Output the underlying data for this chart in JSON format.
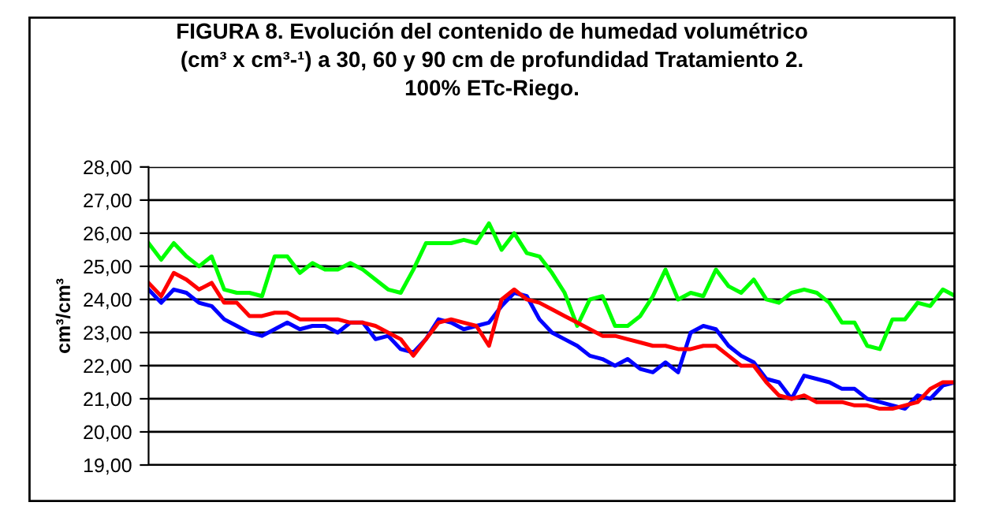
{
  "chart_data": {
    "type": "line",
    "title": "FIGURA 8. Evolución del contenido de humedad volumétrico\n(cm³ x cm³-¹) a 30, 60 y 90 cm de profundidad Tratamiento 2.\n100% ETc-Riego.",
    "ylabel": "cm³/cm³",
    "categories": [
      null,
      null,
      null,
      null,
      null,
      null,
      null,
      null,
      null,
      null,
      null,
      null,
      null,
      null,
      null,
      null,
      null,
      null,
      null,
      null,
      null,
      null,
      null,
      null,
      null,
      null,
      null,
      null,
      null,
      null,
      null,
      null,
      null,
      null,
      null,
      null,
      null,
      null,
      null,
      null,
      null,
      null,
      null,
      null,
      null,
      null,
      null,
      null,
      null,
      null,
      null,
      null,
      null,
      null,
      null,
      null,
      null,
      null,
      null,
      null,
      null,
      null,
      null,
      null,
      null
    ],
    "series": [
      {
        "color": "#00ff00",
        "values": [
          25.7,
          25.2,
          25.7,
          25.3,
          25.0,
          25.3,
          24.3,
          24.2,
          24.2,
          24.1,
          25.3,
          25.3,
          24.8,
          25.1,
          24.9,
          24.9,
          25.1,
          24.9,
          24.6,
          24.3,
          24.2,
          24.9,
          25.7,
          25.7,
          25.7,
          25.8,
          25.7,
          26.3,
          25.5,
          26.0,
          25.4,
          25.3,
          24.8,
          24.2,
          23.2,
          24.0,
          24.1,
          23.2,
          23.2,
          23.5,
          24.1,
          24.9,
          24.0,
          24.2,
          24.1,
          24.9,
          24.4,
          24.2,
          24.6,
          24.0,
          23.9,
          24.2,
          24.3,
          24.2,
          23.9,
          23.3,
          23.3,
          22.6,
          22.5,
          23.4,
          23.4,
          23.9,
          23.8,
          24.3,
          24.1
        ]
      },
      {
        "color": "#0000ff",
        "values": [
          24.3,
          23.9,
          24.3,
          24.2,
          23.9,
          23.8,
          23.4,
          23.2,
          23.0,
          22.9,
          23.1,
          23.3,
          23.1,
          23.2,
          23.2,
          23.0,
          23.3,
          23.3,
          22.8,
          22.9,
          22.5,
          22.4,
          22.8,
          23.4,
          23.3,
          23.1,
          23.2,
          23.3,
          23.8,
          24.2,
          24.1,
          23.4,
          23.0,
          22.8,
          22.6,
          22.3,
          22.2,
          22.0,
          22.2,
          21.9,
          21.8,
          22.1,
          21.8,
          23.0,
          23.2,
          23.1,
          22.6,
          22.3,
          22.1,
          21.6,
          21.5,
          21.0,
          21.7,
          21.6,
          21.5,
          21.3,
          21.3,
          21.0,
          20.9,
          20.8,
          20.7,
          21.1,
          21.0,
          21.4,
          21.5
        ]
      },
      {
        "color": "#ff0000",
        "values": [
          24.5,
          24.1,
          24.8,
          24.6,
          24.3,
          24.5,
          23.9,
          23.9,
          23.5,
          23.5,
          23.6,
          23.6,
          23.4,
          23.4,
          23.4,
          23.4,
          23.3,
          23.3,
          23.2,
          23.0,
          22.8,
          22.3,
          22.8,
          23.3,
          23.4,
          23.3,
          23.2,
          22.6,
          24.0,
          24.3,
          24.0,
          23.9,
          23.7,
          23.5,
          23.3,
          23.1,
          22.9,
          22.9,
          22.8,
          22.7,
          22.6,
          22.6,
          22.5,
          22.5,
          22.6,
          22.6,
          22.3,
          22.0,
          22.0,
          21.5,
          21.1,
          21.0,
          21.1,
          20.9,
          20.9,
          20.9,
          20.8,
          20.8,
          20.7,
          20.7,
          20.8,
          20.9,
          21.3,
          21.5,
          21.5
        ]
      }
    ],
    "ylim": [
      19,
      28
    ],
    "yticks": [
      {
        "value": 19,
        "label": "19,00"
      },
      {
        "value": 20,
        "label": "20,00"
      },
      {
        "value": 21,
        "label": "21,00"
      },
      {
        "value": 22,
        "label": "22,00"
      },
      {
        "value": 23,
        "label": "23,00"
      },
      {
        "value": 24,
        "label": "24,00"
      },
      {
        "value": 25,
        "label": "25,00"
      },
      {
        "value": 26,
        "label": "26,00"
      },
      {
        "value": 27,
        "label": "27,00"
      },
      {
        "value": 28,
        "label": "28,00"
      }
    ],
    "grid": "y",
    "legend": false,
    "tick_labels": "y"
  }
}
